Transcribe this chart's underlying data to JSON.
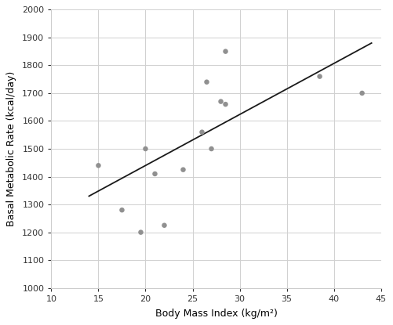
{
  "scatter_x": [
    15,
    17.5,
    19.5,
    20,
    21,
    22,
    24,
    26,
    26.5,
    27,
    28,
    28.5,
    28.5,
    38.5,
    43
  ],
  "scatter_y": [
    1440,
    1280,
    1200,
    1500,
    1410,
    1225,
    1425,
    1560,
    1740,
    1500,
    1670,
    1660,
    1850,
    1760,
    1700
  ],
  "line_x": [
    14,
    44
  ],
  "line_y": [
    1330,
    1880
  ],
  "xlabel": "Body Mass Index (kg/m²)",
  "ylabel": "Basal Metabolic Rate (kcal/day)",
  "xlim": [
    10,
    45
  ],
  "ylim": [
    1000,
    2000
  ],
  "xticks": [
    10,
    15,
    20,
    25,
    30,
    35,
    40,
    45
  ],
  "yticks": [
    1000,
    1100,
    1200,
    1300,
    1400,
    1500,
    1600,
    1700,
    1800,
    1900,
    2000
  ],
  "scatter_color": "#909090",
  "line_color": "#1a1a1a",
  "grid_color": "#d0d0d0",
  "bg_color": "#ffffff",
  "marker_size": 22,
  "line_width": 1.3,
  "tick_labelsize": 8,
  "label_fontsize": 9
}
